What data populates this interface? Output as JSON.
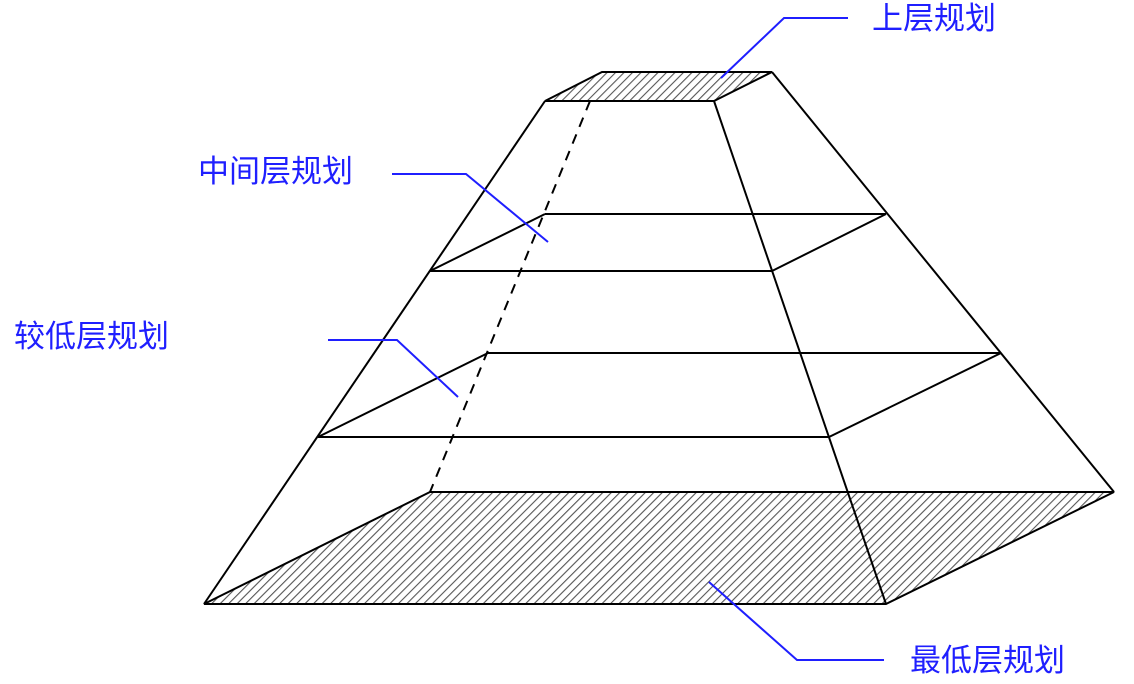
{
  "labels": {
    "top": "上层规划",
    "middle": "中间层规划",
    "lower": "较低层规划",
    "lowest": "最低层规划"
  },
  "colors": {
    "label_text": "#1f1fff",
    "leader_line": "#1f1fff",
    "outline": "#000000",
    "hatch": "#555555"
  }
}
